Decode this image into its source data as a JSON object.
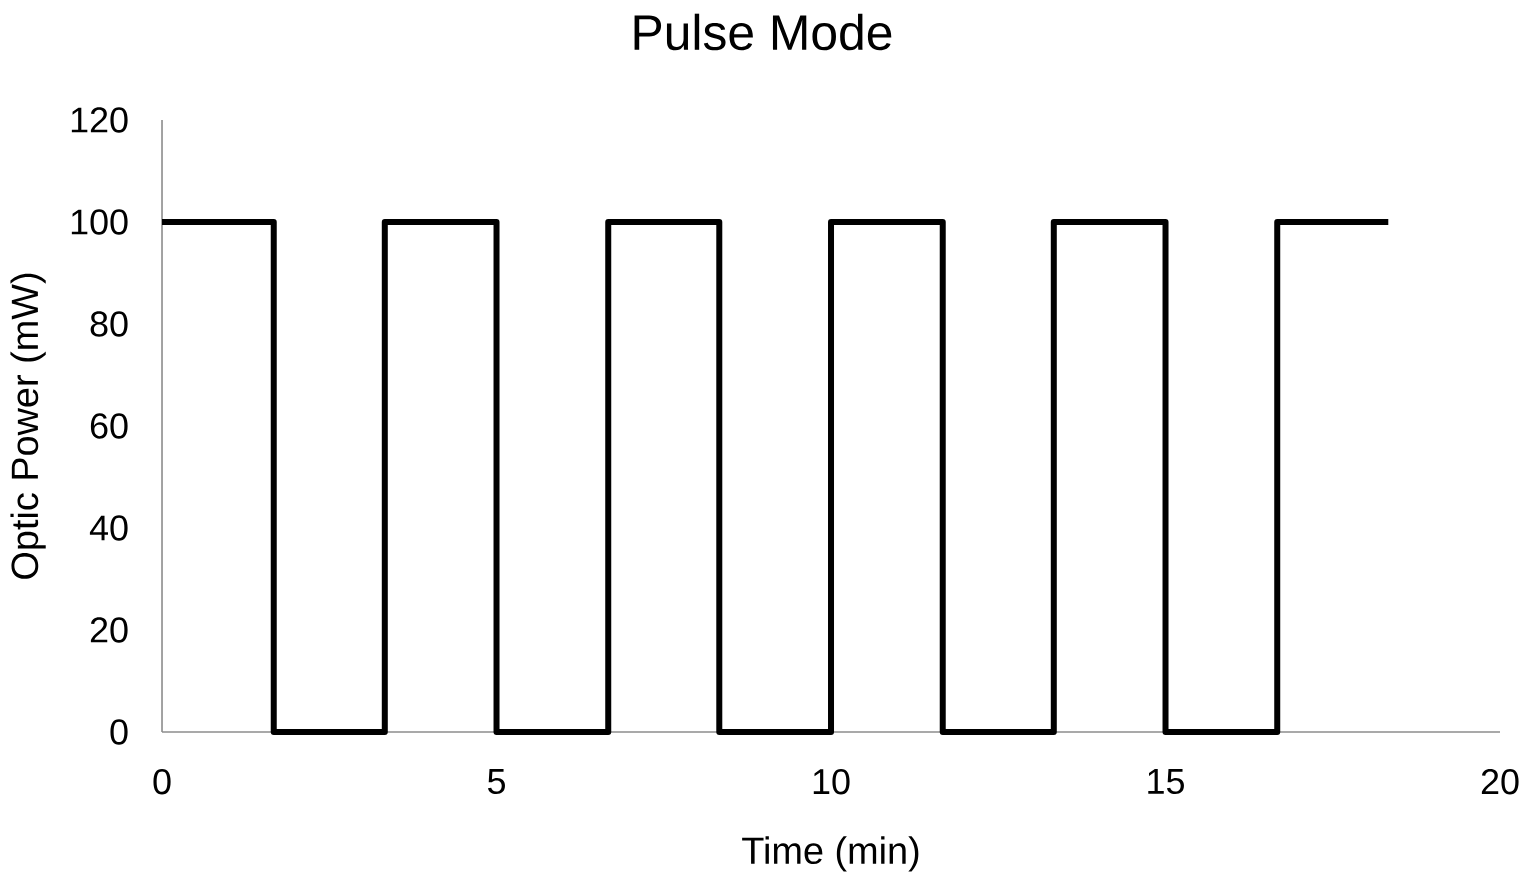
{
  "chart_data": {
    "type": "step",
    "title": "Pulse Mode",
    "xlabel": "Time (min)",
    "ylabel": "Optic Power (mW)",
    "x": [
      0,
      1.67,
      3.33,
      5,
      6.67,
      8.33,
      10,
      11.67,
      13.33,
      15,
      16.67,
      18.33
    ],
    "values": [
      100,
      0,
      100,
      0,
      100,
      0,
      100,
      0,
      100,
      0,
      100,
      100
    ],
    "color": "#000000",
    "line_style": "solid",
    "xlim": [
      0,
      20
    ],
    "xticks": [
      0,
      5,
      10,
      15,
      20
    ],
    "ylim": [
      0,
      120
    ],
    "yticks": [
      0,
      20,
      40,
      60,
      80,
      100,
      120
    ]
  }
}
